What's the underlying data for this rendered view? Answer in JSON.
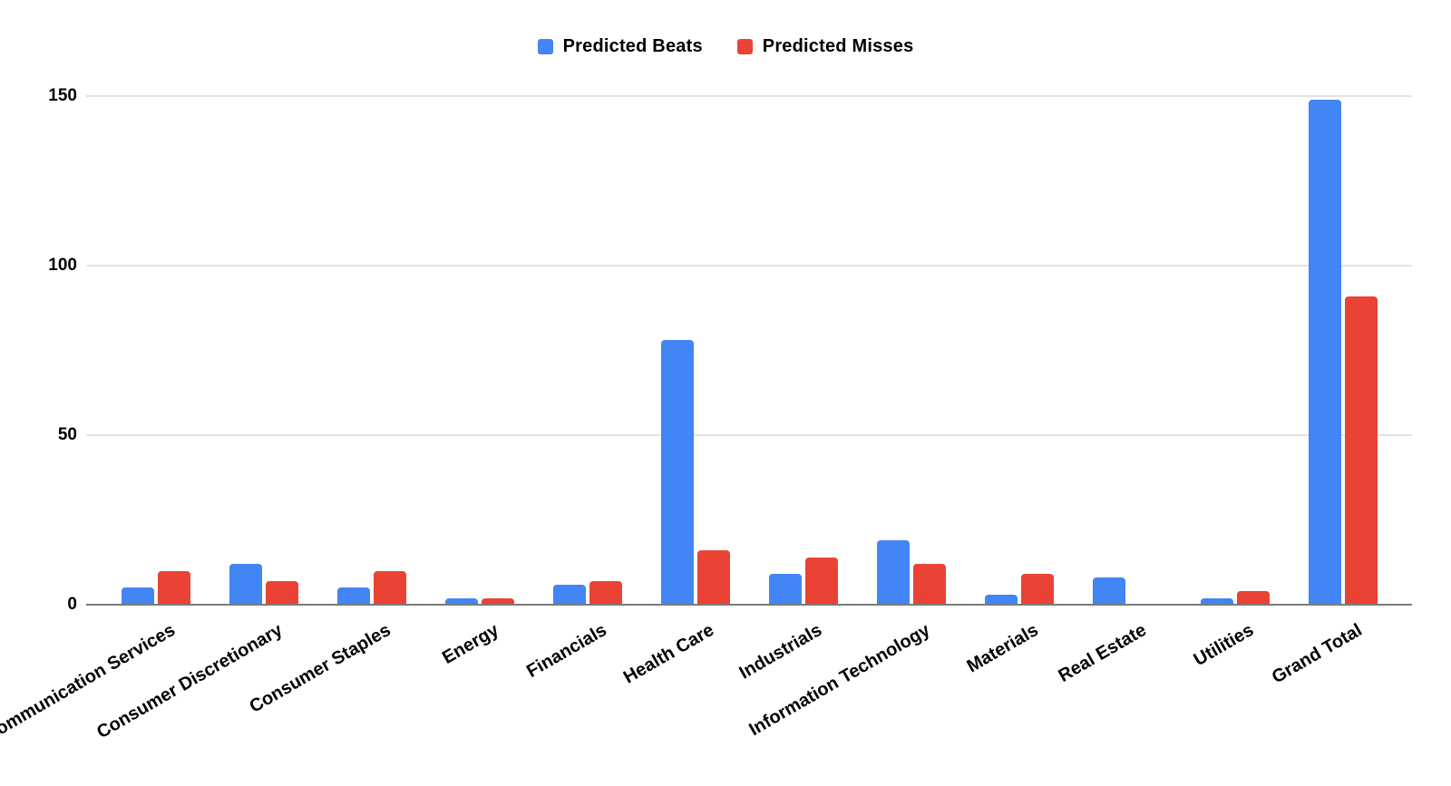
{
  "legend": {
    "items": [
      {
        "label": "Predicted Beats",
        "color": "#4285F4"
      },
      {
        "label": "Predicted Misses",
        "color": "#EA4335"
      }
    ]
  },
  "y_axis": {
    "tick_labels": [
      "0",
      "50",
      "100",
      "150"
    ],
    "tick_values": [
      0,
      50,
      100,
      150
    ]
  },
  "chart_data": {
    "type": "bar",
    "categories": [
      "Communication Services",
      "Consumer Discretionary",
      "Consumer Staples",
      "Energy",
      "Financials",
      "Health Care",
      "Industrials",
      "Information Technology",
      "Materials",
      "Real Estate",
      "Utilities",
      "Grand Total"
    ],
    "series": [
      {
        "name": "Predicted Beats",
        "color": "#4285F4",
        "values": [
          5,
          12,
          5,
          2,
          6,
          78,
          9,
          19,
          3,
          8,
          2,
          149
        ]
      },
      {
        "name": "Predicted Misses",
        "color": "#EA4335",
        "values": [
          10,
          7,
          10,
          2,
          7,
          16,
          14,
          12,
          9,
          0,
          4,
          91
        ]
      }
    ],
    "title": "",
    "xlabel": "",
    "ylabel": "",
    "ylim": [
      0,
      150
    ],
    "grid": true,
    "legend_position": "top-center"
  },
  "colors": {
    "background": "#FFFFFF",
    "gridline": "#E3E3E3",
    "axis_line": "#7A7A7A",
    "label_text": "#000000"
  }
}
